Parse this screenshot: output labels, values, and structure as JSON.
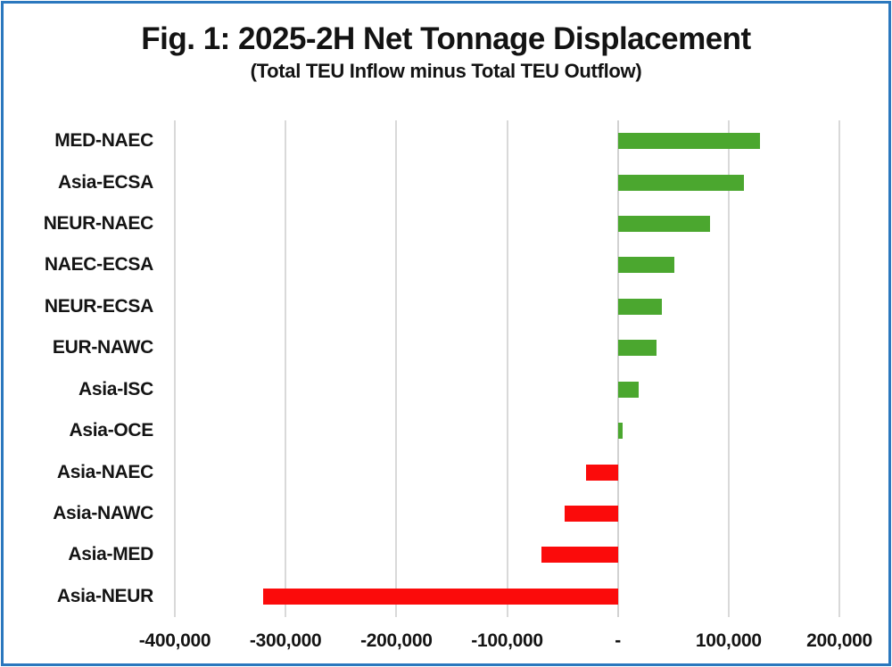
{
  "figure": {
    "title": "Fig. 1: 2025-2H Net Tonnage Displacement",
    "subtitle": "(Total TEU Inflow minus Total TEU Outflow)"
  },
  "chart_data": {
    "type": "bar",
    "orientation": "horizontal",
    "title": "Fig. 1: 2025-2H Net Tonnage Displacement",
    "subtitle": "(Total TEU Inflow minus Total TEU Outflow)",
    "categories": [
      "MED-NAEC",
      "Asia-ECSA",
      "NEUR-NAEC",
      "NAEC-ECSA",
      "NEUR-ECSA",
      "EUR-NAWC",
      "Asia-ISC",
      "Asia-OCE",
      "Asia-NAEC",
      "Asia-NAWC",
      "Asia-MED",
      "Asia-NEUR"
    ],
    "values": [
      128000,
      114000,
      83000,
      51000,
      40000,
      35000,
      19000,
      4000,
      -29000,
      -48000,
      -69000,
      -320000
    ],
    "unit": "TEU",
    "xlim": [
      -400000,
      200000
    ],
    "x_tick_values": [
      -400000,
      -300000,
      -200000,
      -100000,
      0,
      100000,
      200000
    ],
    "x_tick_labels": [
      "-400,000",
      "-300,000",
      "-200,000",
      "-100,000",
      "-",
      "100,000",
      "200,000"
    ],
    "grid": true,
    "legend": false,
    "colors": {
      "positive": "#4ba72f",
      "negative": "#fb0b0b",
      "gridline": "#d9d9d9",
      "zero_line": "#d2d2d2",
      "frame_border": "#2b78be",
      "text": "#141414"
    }
  }
}
